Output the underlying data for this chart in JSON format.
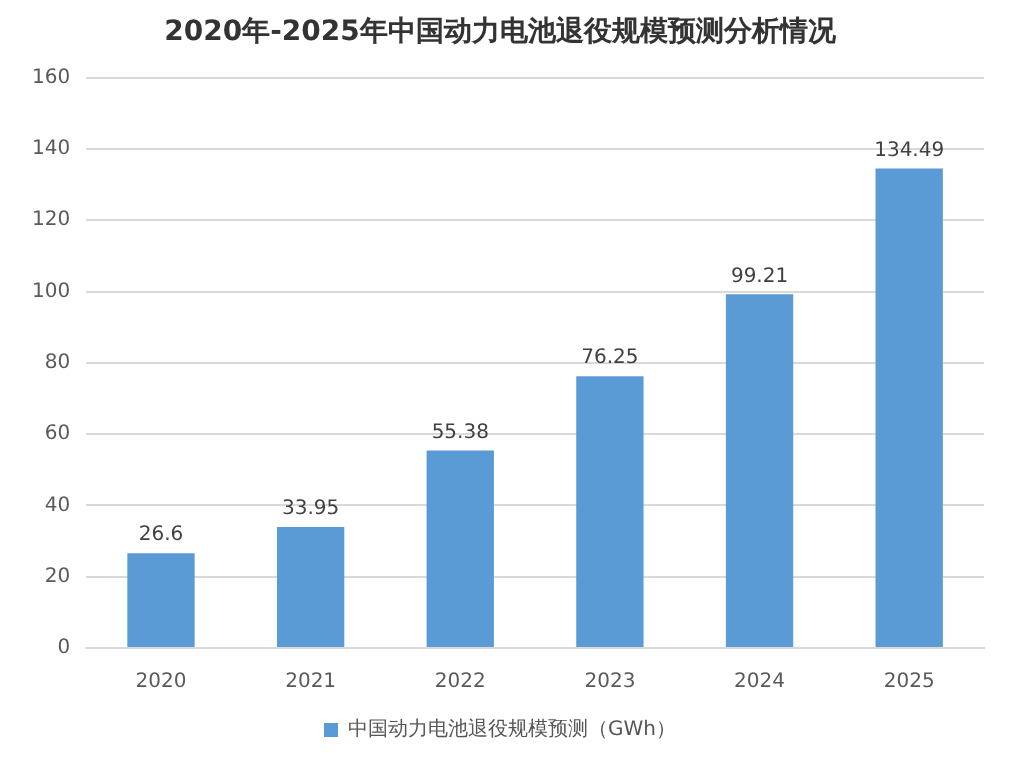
{
  "chart_data": {
    "type": "bar",
    "title": "2020年-2025年中国动力电池退役规模预测分析情况",
    "categories": [
      "2020",
      "2021",
      "2022",
      "2023",
      "2024",
      "2025"
    ],
    "series": [
      {
        "name": "中国动力电池退役规模预测（GWh）",
        "color": "#5b9bd5",
        "values": [
          26.6,
          33.95,
          55.38,
          76.25,
          99.21,
          134.49
        ]
      }
    ],
    "ylim": [
      0,
      160
    ],
    "yticks": [
      0,
      20,
      40,
      60,
      80,
      100,
      120,
      140,
      160
    ],
    "grid": "y",
    "legend": "bottom",
    "data_labels": true
  }
}
